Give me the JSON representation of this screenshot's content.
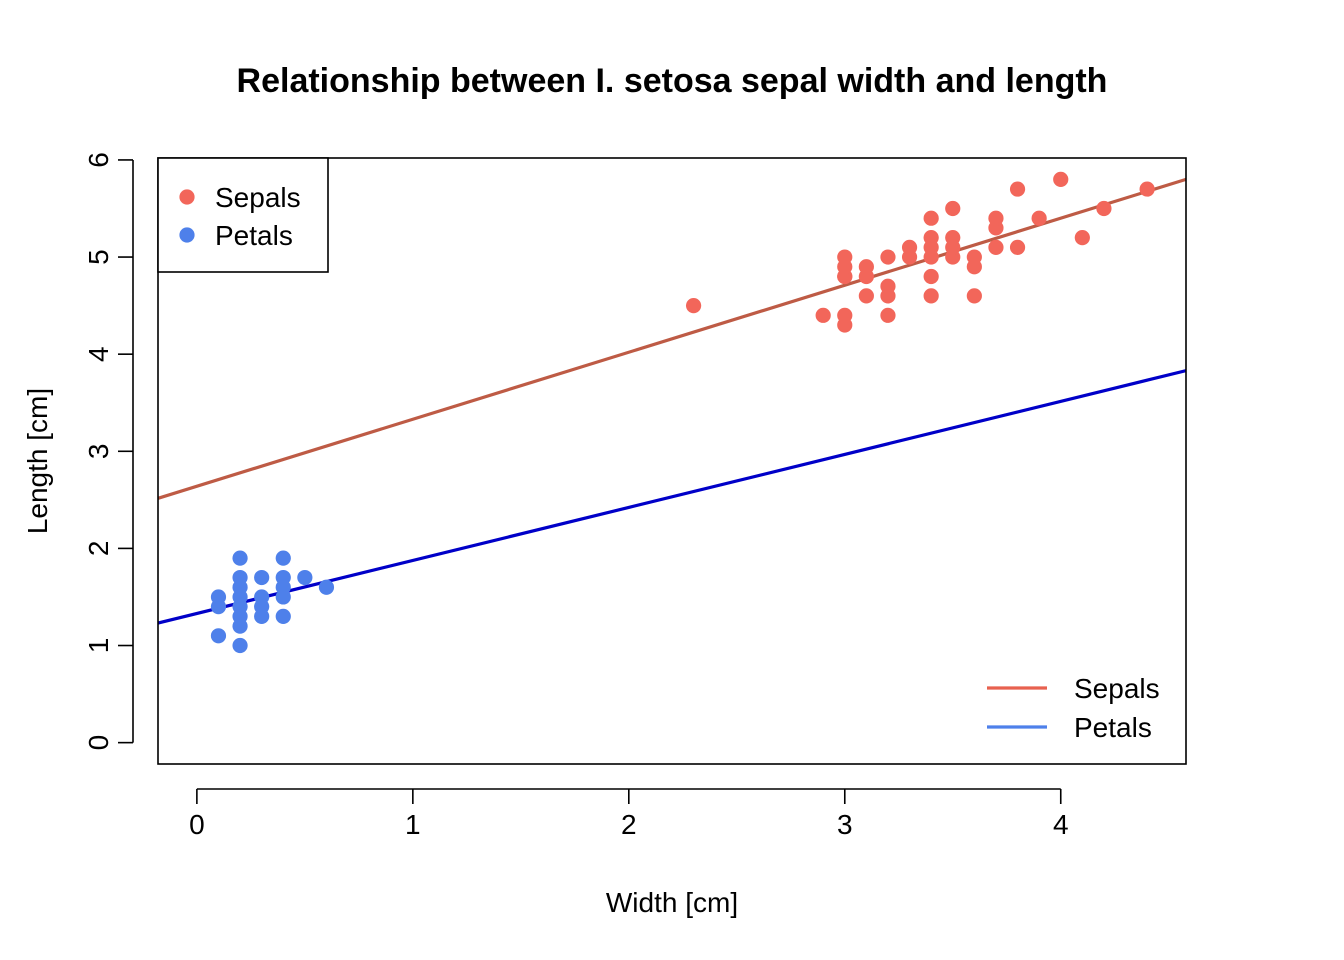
{
  "chart_data": {
    "type": "scatter",
    "title": "Relationship between I. setosa sepal width and length",
    "xlabel": "Width [cm]",
    "ylabel": "Length [cm]",
    "xlim": [
      -0.18,
      4.58
    ],
    "ylim": [
      -0.22,
      6.02
    ],
    "xticks": [
      0,
      1,
      2,
      3,
      4
    ],
    "yticks": [
      0,
      1,
      2,
      3,
      4,
      5,
      6
    ],
    "grid": false,
    "series": [
      {
        "name": "Sepals",
        "color": "#F2665A",
        "points": [
          [
            2.3,
            4.5
          ],
          [
            2.9,
            4.4
          ],
          [
            3.0,
            4.3
          ],
          [
            3.0,
            4.4
          ],
          [
            3.0,
            4.8
          ],
          [
            3.0,
            4.8
          ],
          [
            3.0,
            4.9
          ],
          [
            3.0,
            5.0
          ],
          [
            3.1,
            4.6
          ],
          [
            3.1,
            4.8
          ],
          [
            3.1,
            4.9
          ],
          [
            3.2,
            4.4
          ],
          [
            3.2,
            4.6
          ],
          [
            3.2,
            4.7
          ],
          [
            3.2,
            5.0
          ],
          [
            3.3,
            5.0
          ],
          [
            3.3,
            5.1
          ],
          [
            3.4,
            4.6
          ],
          [
            3.4,
            4.8
          ],
          [
            3.4,
            5.0
          ],
          [
            3.4,
            5.1
          ],
          [
            3.4,
            5.2
          ],
          [
            3.4,
            5.4
          ],
          [
            3.5,
            5.0
          ],
          [
            3.5,
            5.1
          ],
          [
            3.5,
            5.2
          ],
          [
            3.5,
            5.5
          ],
          [
            3.6,
            4.6
          ],
          [
            3.6,
            4.9
          ],
          [
            3.6,
            5.0
          ],
          [
            3.7,
            5.1
          ],
          [
            3.7,
            5.3
          ],
          [
            3.7,
            5.4
          ],
          [
            3.8,
            5.1
          ],
          [
            3.8,
            5.7
          ],
          [
            3.9,
            5.4
          ],
          [
            4.0,
            5.8
          ],
          [
            4.1,
            5.2
          ],
          [
            4.2,
            5.5
          ],
          [
            4.4,
            5.7
          ]
        ]
      },
      {
        "name": "Petals",
        "color": "#4E80EA",
        "points": [
          [
            0.1,
            1.1
          ],
          [
            0.1,
            1.4
          ],
          [
            0.1,
            1.5
          ],
          [
            0.2,
            1.0
          ],
          [
            0.2,
            1.2
          ],
          [
            0.2,
            1.3
          ],
          [
            0.2,
            1.4
          ],
          [
            0.2,
            1.5
          ],
          [
            0.2,
            1.6
          ],
          [
            0.2,
            1.7
          ],
          [
            0.2,
            1.9
          ],
          [
            0.3,
            1.3
          ],
          [
            0.3,
            1.4
          ],
          [
            0.3,
            1.5
          ],
          [
            0.3,
            1.7
          ],
          [
            0.4,
            1.3
          ],
          [
            0.4,
            1.5
          ],
          [
            0.4,
            1.6
          ],
          [
            0.4,
            1.7
          ],
          [
            0.4,
            1.9
          ],
          [
            0.5,
            1.7
          ],
          [
            0.6,
            1.6
          ]
        ]
      }
    ],
    "fits": [
      {
        "name": "Sepals",
        "color": "#BE5B45",
        "legend_color": "#E8614F",
        "intercept": 2.64,
        "slope": 0.69
      },
      {
        "name": "Petals",
        "color": "#0000C8",
        "legend_color": "#4E80EA",
        "intercept": 1.33,
        "slope": 0.546
      }
    ],
    "legend_points_position": "top-left",
    "legend_lines_position": "bottom-right"
  }
}
